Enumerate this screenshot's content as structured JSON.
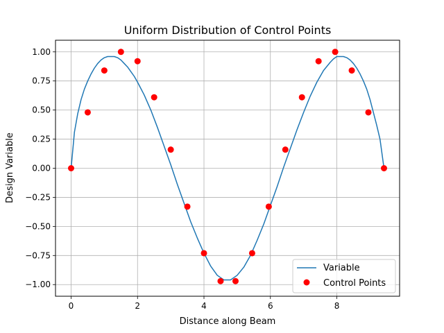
{
  "chart_data": {
    "type": "line",
    "title": "Uniform Distribution of Control Points",
    "xlabel": "Distance along Beam",
    "ylabel": "Design Variable",
    "xlim": [
      -0.47,
      9.89
    ],
    "ylim": [
      -1.1,
      1.1
    ],
    "xticks": [
      0,
      2,
      4,
      6,
      8
    ],
    "xtick_labels": [
      "0",
      "2",
      "4",
      "6",
      "8"
    ],
    "yticks": [
      -1.0,
      -0.75,
      -0.5,
      -0.25,
      0.0,
      0.25,
      0.5,
      0.75,
      1.0
    ],
    "ytick_labels": [
      "−1.00",
      "−0.75",
      "−0.50",
      "−0.25",
      "0.00",
      "0.25",
      "0.50",
      "0.75",
      "1.00"
    ],
    "grid": true,
    "legend_position": "lower-right",
    "series": [
      {
        "name": "Variable",
        "kind": "line",
        "color": "#1f77b4",
        "x": [
          0.0,
          0.1,
          0.2,
          0.3,
          0.4,
          0.5,
          0.6,
          0.7,
          0.8,
          0.9,
          1.0,
          1.1,
          1.2,
          1.3,
          1.4,
          1.5,
          1.6,
          1.7,
          1.8,
          1.9,
          2.0,
          2.2,
          2.4,
          2.6,
          2.8,
          3.0,
          3.2,
          3.4,
          3.6,
          3.8,
          4.0,
          4.2,
          4.4,
          4.6,
          4.7,
          4.8,
          5.0,
          5.2,
          5.4,
          5.6,
          5.8,
          6.0,
          6.2,
          6.4,
          6.6,
          6.8,
          7.0,
          7.2,
          7.4,
          7.6,
          7.8,
          7.9,
          8.0,
          8.1,
          8.2,
          8.3,
          8.4,
          8.5,
          8.6,
          8.7,
          8.8,
          8.9,
          9.0,
          9.1,
          9.2,
          9.3,
          9.42
        ],
        "y": [
          0.0,
          0.31,
          0.47,
          0.59,
          0.68,
          0.75,
          0.81,
          0.86,
          0.9,
          0.93,
          0.95,
          0.96,
          0.96,
          0.96,
          0.95,
          0.93,
          0.9,
          0.87,
          0.83,
          0.79,
          0.74,
          0.63,
          0.5,
          0.35,
          0.19,
          0.03,
          -0.14,
          -0.3,
          -0.46,
          -0.6,
          -0.73,
          -0.84,
          -0.92,
          -0.96,
          -0.96,
          -0.96,
          -0.92,
          -0.85,
          -0.75,
          -0.62,
          -0.48,
          -0.32,
          -0.16,
          0.01,
          0.17,
          0.33,
          0.48,
          0.62,
          0.74,
          0.84,
          0.91,
          0.94,
          0.96,
          0.96,
          0.96,
          0.95,
          0.93,
          0.9,
          0.86,
          0.81,
          0.75,
          0.68,
          0.59,
          0.48,
          0.37,
          0.25,
          0.0
        ]
      },
      {
        "name": "Control Points",
        "kind": "scatter",
        "color": "#ff0000",
        "x": [
          0.0,
          0.5,
          1.0,
          1.5,
          2.0,
          2.5,
          3.0,
          3.5,
          4.0,
          4.5,
          4.95,
          5.45,
          5.95,
          6.45,
          6.95,
          7.45,
          7.95,
          8.45,
          8.95,
          9.42
        ],
        "y": [
          0.0,
          0.48,
          0.84,
          1.0,
          0.92,
          0.61,
          0.16,
          -0.33,
          -0.73,
          -0.97,
          -0.97,
          -0.73,
          -0.33,
          0.16,
          0.61,
          0.92,
          1.0,
          0.84,
          0.48,
          0.0
        ]
      }
    ]
  }
}
